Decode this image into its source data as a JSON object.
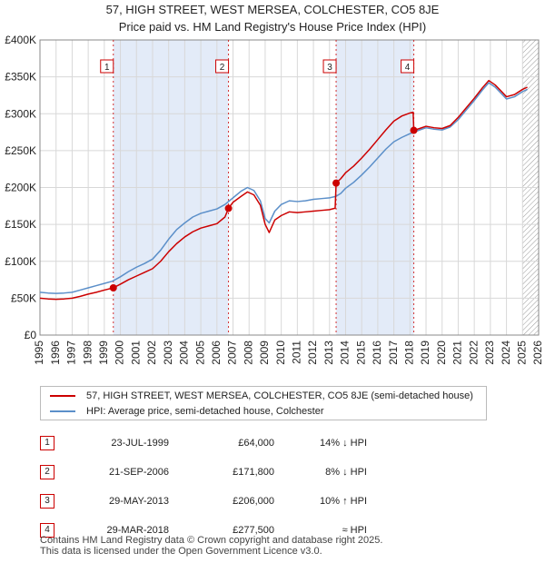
{
  "title": {
    "line1": "57, HIGH STREET, WEST MERSEA, COLCHESTER, CO5 8JE",
    "line2": "Price paid vs. HM Land Registry's House Price Index (HPI)"
  },
  "legend": {
    "red_label": "57, HIGH STREET, WEST MERSEA, COLCHESTER, CO5 8JE (semi-detached house)",
    "blue_label": "HPI: Average price, semi-detached house, Colchester"
  },
  "colors": {
    "red": "#cc0000",
    "blue": "#5b8fc9",
    "shade": "#e3ebf8",
    "hatch": "#999999",
    "grid": "#d8d8d8"
  },
  "chart_data": {
    "type": "line",
    "xlim": [
      1995,
      2026
    ],
    "ylim": [
      0,
      400000
    ],
    "y_ticks": [
      {
        "value": 0,
        "label": "£0"
      },
      {
        "value": 50000,
        "label": "£50K"
      },
      {
        "value": 100000,
        "label": "£100K"
      },
      {
        "value": 150000,
        "label": "£150K"
      },
      {
        "value": 200000,
        "label": "£200K"
      },
      {
        "value": 250000,
        "label": "£250K"
      },
      {
        "value": 300000,
        "label": "£300K"
      },
      {
        "value": 350000,
        "label": "£350K"
      },
      {
        "value": 400000,
        "label": "£400K"
      }
    ],
    "x_ticks": [
      "1995",
      "1996",
      "1997",
      "1998",
      "1999",
      "2000",
      "2001",
      "2002",
      "2003",
      "2004",
      "2005",
      "2006",
      "2007",
      "2008",
      "2009",
      "2010",
      "2011",
      "2012",
      "2013",
      "2014",
      "2015",
      "2016",
      "2017",
      "2018",
      "2019",
      "2020",
      "2021",
      "2022",
      "2023",
      "2024",
      "2025",
      "2026"
    ],
    "shaded_ranges": [
      [
        1999.56,
        2006.72
      ],
      [
        2013.41,
        2018.24
      ]
    ],
    "future_hatch_from": 2025.0,
    "series": [
      {
        "name": "HPI: Average price, semi-detached house, Colchester",
        "color": "#5b8fc9",
        "points": [
          [
            1995.0,
            58000
          ],
          [
            1995.5,
            57000
          ],
          [
            1996.0,
            56500
          ],
          [
            1996.5,
            57000
          ],
          [
            1997.0,
            58000
          ],
          [
            1997.5,
            61000
          ],
          [
            1998.0,
            64000
          ],
          [
            1998.5,
            67000
          ],
          [
            1999.0,
            70000
          ],
          [
            1999.5,
            73000
          ],
          [
            2000.0,
            79000
          ],
          [
            2000.5,
            86000
          ],
          [
            2001.0,
            92000
          ],
          [
            2001.5,
            97000
          ],
          [
            2002.0,
            103000
          ],
          [
            2002.5,
            115000
          ],
          [
            2003.0,
            130000
          ],
          [
            2003.5,
            143000
          ],
          [
            2004.0,
            152000
          ],
          [
            2004.5,
            160000
          ],
          [
            2005.0,
            165000
          ],
          [
            2005.5,
            168000
          ],
          [
            2006.0,
            171000
          ],
          [
            2006.5,
            177000
          ],
          [
            2007.0,
            186000
          ],
          [
            2007.5,
            195000
          ],
          [
            2007.9,
            200000
          ],
          [
            2008.3,
            196000
          ],
          [
            2008.7,
            182000
          ],
          [
            2009.0,
            158000
          ],
          [
            2009.25,
            152000
          ],
          [
            2009.6,
            168000
          ],
          [
            2010.0,
            177000
          ],
          [
            2010.5,
            182000
          ],
          [
            2011.0,
            181000
          ],
          [
            2011.5,
            182000
          ],
          [
            2012.0,
            184000
          ],
          [
            2012.5,
            185000
          ],
          [
            2013.0,
            186000
          ],
          [
            2013.4,
            188000
          ],
          [
            2013.7,
            192000
          ],
          [
            2014.0,
            199000
          ],
          [
            2014.5,
            207000
          ],
          [
            2015.0,
            217000
          ],
          [
            2015.5,
            228000
          ],
          [
            2016.0,
            240000
          ],
          [
            2016.5,
            252000
          ],
          [
            2017.0,
            262000
          ],
          [
            2017.5,
            268000
          ],
          [
            2018.0,
            273000
          ],
          [
            2018.24,
            275000
          ],
          [
            2018.6,
            278000
          ],
          [
            2019.0,
            281000
          ],
          [
            2019.5,
            279000
          ],
          [
            2020.0,
            278000
          ],
          [
            2020.5,
            282000
          ],
          [
            2021.0,
            292000
          ],
          [
            2021.5,
            305000
          ],
          [
            2022.0,
            318000
          ],
          [
            2022.5,
            332000
          ],
          [
            2022.9,
            342000
          ],
          [
            2023.3,
            336000
          ],
          [
            2023.7,
            327000
          ],
          [
            2024.0,
            320000
          ],
          [
            2024.5,
            323000
          ],
          [
            2025.0,
            330000
          ],
          [
            2025.3,
            333000
          ]
        ]
      },
      {
        "name": "57, HIGH STREET, WEST MERSEA, COLCHESTER, CO5 8JE (semi-detached house)",
        "color": "#cc0000",
        "points": [
          [
            1995.0,
            50000
          ],
          [
            1995.5,
            49000
          ],
          [
            1996.0,
            48500
          ],
          [
            1996.5,
            49000
          ],
          [
            1997.0,
            50000
          ],
          [
            1997.5,
            52500
          ],
          [
            1998.0,
            55500
          ],
          [
            1998.5,
            58000
          ],
          [
            1999.0,
            61000
          ],
          [
            1999.56,
            64000
          ],
          [
            2000.0,
            69000
          ],
          [
            2000.5,
            75000
          ],
          [
            2001.0,
            80000
          ],
          [
            2001.5,
            85000
          ],
          [
            2002.0,
            90000
          ],
          [
            2002.5,
            100000
          ],
          [
            2003.0,
            113000
          ],
          [
            2003.5,
            124000
          ],
          [
            2004.0,
            133000
          ],
          [
            2004.5,
            140000
          ],
          [
            2005.0,
            145000
          ],
          [
            2005.5,
            148000
          ],
          [
            2006.0,
            151000
          ],
          [
            2006.5,
            160000
          ],
          [
            2006.72,
            171800
          ],
          [
            2007.0,
            180000
          ],
          [
            2007.5,
            188000
          ],
          [
            2007.9,
            194000
          ],
          [
            2008.3,
            190000
          ],
          [
            2008.7,
            176000
          ],
          [
            2009.0,
            150000
          ],
          [
            2009.25,
            139000
          ],
          [
            2009.6,
            156000
          ],
          [
            2010.0,
            162000
          ],
          [
            2010.5,
            167000
          ],
          [
            2011.0,
            166000
          ],
          [
            2011.5,
            167000
          ],
          [
            2012.0,
            168000
          ],
          [
            2012.5,
            169000
          ],
          [
            2013.0,
            170000
          ],
          [
            2013.35,
            172000
          ],
          [
            2013.41,
            206000
          ],
          [
            2013.7,
            212000
          ],
          [
            2014.0,
            220000
          ],
          [
            2014.5,
            229000
          ],
          [
            2015.0,
            240000
          ],
          [
            2015.5,
            252000
          ],
          [
            2016.0,
            265000
          ],
          [
            2016.5,
            278000
          ],
          [
            2017.0,
            290000
          ],
          [
            2017.5,
            297000
          ],
          [
            2018.0,
            301000
          ],
          [
            2018.2,
            302000
          ],
          [
            2018.24,
            277500
          ],
          [
            2018.6,
            280000
          ],
          [
            2019.0,
            283000
          ],
          [
            2019.5,
            281000
          ],
          [
            2020.0,
            280000
          ],
          [
            2020.5,
            284000
          ],
          [
            2021.0,
            295000
          ],
          [
            2021.5,
            308000
          ],
          [
            2022.0,
            321000
          ],
          [
            2022.5,
            335000
          ],
          [
            2022.9,
            345000
          ],
          [
            2023.3,
            339000
          ],
          [
            2023.7,
            330000
          ],
          [
            2024.0,
            323000
          ],
          [
            2024.5,
            326000
          ],
          [
            2025.0,
            333000
          ],
          [
            2025.3,
            336000
          ]
        ]
      }
    ],
    "sales": [
      {
        "label": "1",
        "x": 1999.56,
        "value": 64000
      },
      {
        "label": "2",
        "x": 2006.72,
        "value": 171800
      },
      {
        "label": "3",
        "x": 2013.41,
        "value": 206000
      },
      {
        "label": "4",
        "x": 2018.24,
        "value": 277500
      }
    ]
  },
  "transactions": [
    {
      "num": "1",
      "date": "23-JUL-1999",
      "price": "£64,000",
      "hpi": "14% ↓ HPI"
    },
    {
      "num": "2",
      "date": "21-SEP-2006",
      "price": "£171,800",
      "hpi": "8% ↓ HPI"
    },
    {
      "num": "3",
      "date": "29-MAY-2013",
      "price": "£206,000",
      "hpi": "10% ↑ HPI"
    },
    {
      "num": "4",
      "date": "29-MAR-2018",
      "price": "£277,500",
      "hpi": "≈ HPI"
    }
  ],
  "footer": {
    "line1": "Contains HM Land Registry data © Crown copyright and database right 2025.",
    "line2": "This data is licensed under the Open Government Licence v3.0."
  }
}
